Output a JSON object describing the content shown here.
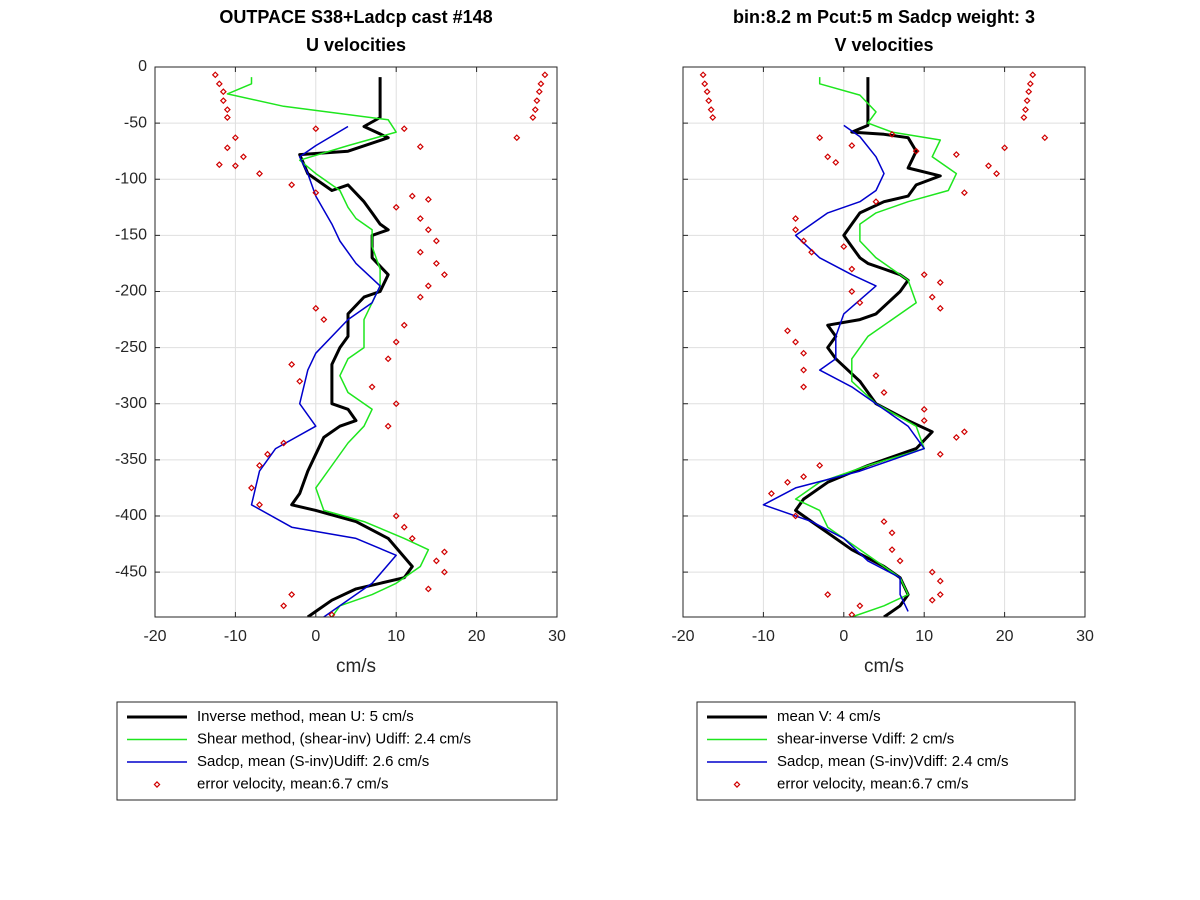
{
  "chart_data": [
    {
      "type": "line",
      "title": "OUTPACE S38+Ladcp cast #148",
      "subtitle": "U velocities",
      "x_label": "cm/s",
      "xlim": [
        -20,
        30
      ],
      "ylim": [
        -490,
        0
      ],
      "xticks": [
        -20,
        -10,
        0,
        10,
        20,
        30
      ],
      "yticks": [
        0,
        -50,
        -100,
        -150,
        -200,
        -250,
        -300,
        -350,
        -400,
        -450
      ],
      "grid": true,
      "legend": "below",
      "series": [
        {
          "name": "Inverse method, mean U:  5 cm/s",
          "color": "#000000",
          "linewidth": 3,
          "x": [
            8,
            8,
            6,
            9,
            4,
            -2,
            -1,
            2,
            4,
            6,
            7,
            8,
            9,
            7,
            7,
            9,
            8,
            6,
            4,
            4,
            3,
            2,
            2,
            2,
            4,
            5,
            3,
            1,
            0,
            -1,
            -2,
            -3,
            0,
            5,
            9,
            12,
            11,
            5,
            2,
            0,
            -1
          ],
          "y": [
            -9,
            -45,
            -53,
            -63,
            -75,
            -78,
            -95,
            -110,
            -105,
            -120,
            -130,
            -140,
            -145,
            -150,
            -170,
            -185,
            -200,
            -205,
            -220,
            -240,
            -250,
            -265,
            -280,
            -300,
            -305,
            -315,
            -320,
            -330,
            -345,
            -360,
            -380,
            -390,
            -395,
            -405,
            -420,
            -445,
            -455,
            -465,
            -475,
            -485,
            -490
          ]
        },
        {
          "name": "Shear method, (shear-inv)  Udiff:  2.4 cm/s",
          "color": "#1ee61e",
          "linewidth": 1.5,
          "x": [
            -8,
            -8,
            -11,
            -4,
            9,
            10,
            4,
            -2,
            0,
            3,
            4,
            5,
            7,
            7,
            8,
            8,
            7,
            6,
            6,
            4,
            3,
            4,
            7,
            6,
            4,
            2,
            0,
            1,
            6,
            11,
            14,
            13,
            10,
            7,
            3,
            2
          ],
          "y": [
            -9,
            -15,
            -24,
            -35,
            -47,
            -58,
            -70,
            -83,
            -95,
            -110,
            -125,
            -135,
            -145,
            -160,
            -180,
            -195,
            -210,
            -225,
            -250,
            -260,
            -275,
            -290,
            -305,
            -320,
            -335,
            -355,
            -375,
            -395,
            -405,
            -420,
            -430,
            -445,
            -460,
            -470,
            -480,
            -490
          ]
        },
        {
          "name": "Sadcp, mean (S-inv)Udiff: 2.6 cm/s",
          "color": "#0000cc",
          "linewidth": 1.5,
          "x": [
            4,
            0,
            -2,
            -1,
            0,
            2,
            3,
            5,
            8,
            7,
            4,
            0,
            -1,
            -2,
            0,
            -5,
            -7,
            -8,
            -3,
            5,
            10,
            7,
            1
          ],
          "y": [
            -53,
            -70,
            -80,
            -95,
            -115,
            -140,
            -155,
            -175,
            -195,
            -210,
            -225,
            -255,
            -270,
            -300,
            -320,
            -340,
            -360,
            -390,
            -410,
            -420,
            -435,
            -460,
            -490
          ]
        },
        {
          "name": "error velocity, mean:6.7 cm/s",
          "color": "#d00000",
          "marker": "diamond",
          "x": [
            -12.5,
            -12,
            -11.5,
            -11.5,
            -11,
            -11,
            28.5,
            28,
            27.8,
            27.5,
            27.3,
            27,
            25,
            -10,
            -11,
            -9,
            -10,
            -12,
            -7,
            0,
            11,
            13,
            -3,
            0,
            12,
            14,
            10,
            13,
            14,
            15,
            13,
            15,
            16,
            14,
            13,
            0,
            1,
            11,
            10,
            9,
            -3,
            -2,
            7,
            10,
            9,
            -4,
            -6,
            -7,
            -8,
            -7,
            10,
            11,
            12,
            16,
            15,
            16,
            14,
            -3,
            -4,
            2
          ],
          "y": [
            -7,
            -15,
            -22,
            -30,
            -38,
            -45,
            -7,
            -15,
            -22,
            -30,
            -38,
            -45,
            -63,
            -63,
            -72,
            -80,
            -88,
            -87,
            -95,
            -55,
            -55,
            -71,
            -105,
            -112,
            -115,
            -118,
            -125,
            -135,
            -145,
            -155,
            -165,
            -175,
            -185,
            -195,
            -205,
            -215,
            -225,
            -230,
            -245,
            -260,
            -265,
            -280,
            -285,
            -300,
            -320,
            -335,
            -345,
            -355,
            -375,
            -390,
            -400,
            -410,
            -420,
            -432,
            -440,
            -450,
            -465,
            -470,
            -480,
            -488
          ]
        }
      ]
    },
    {
      "type": "line",
      "title": "bin:8.2 m  Pcut:5 m  Sadcp weight: 3",
      "subtitle": "V velocities",
      "x_label": "cm/s",
      "xlim": [
        -20,
        30
      ],
      "ylim": [
        -490,
        0
      ],
      "xticks": [
        -20,
        -10,
        0,
        10,
        20,
        30
      ],
      "yticks": [
        0,
        -50,
        -100,
        -150,
        -200,
        -250,
        -300,
        -350,
        -400,
        -450
      ],
      "grid": true,
      "legend": "below",
      "series": [
        {
          "name": "mean V:  4 cm/s",
          "color": "#000000",
          "linewidth": 3,
          "x": [
            3,
            3,
            3,
            1,
            5,
            8,
            9,
            8,
            12,
            9,
            8,
            5,
            2,
            1,
            0,
            1,
            2,
            3,
            5,
            7,
            8,
            7,
            4,
            2,
            -2,
            -1,
            -2,
            -1,
            2,
            4,
            8,
            11,
            9,
            3,
            -2,
            -5,
            -6,
            -4,
            -2,
            1,
            5,
            7,
            8,
            7,
            5
          ],
          "y": [
            -9,
            -45,
            -52,
            -58,
            -60,
            -63,
            -75,
            -90,
            -97,
            -105,
            -115,
            -120,
            -130,
            -140,
            -150,
            -160,
            -170,
            -175,
            -180,
            -185,
            -190,
            -200,
            -220,
            -225,
            -230,
            -240,
            -250,
            -260,
            -280,
            -300,
            -315,
            -325,
            -340,
            -355,
            -370,
            -385,
            -395,
            -405,
            -415,
            -430,
            -445,
            -455,
            -470,
            -480,
            -490
          ]
        },
        {
          "name": "shear-inverse Vdiff:  2 cm/s",
          "color": "#1ee61e",
          "linewidth": 1.5,
          "x": [
            -3,
            -3,
            2,
            4,
            3,
            6,
            12,
            11,
            14,
            13,
            8,
            4,
            2,
            2,
            4,
            6,
            8,
            9,
            6,
            3,
            1,
            1,
            4,
            9,
            10,
            3,
            -3,
            -6,
            -3,
            -2,
            1,
            4,
            7,
            8,
            5,
            1
          ],
          "y": [
            -9,
            -15,
            -25,
            -40,
            -50,
            -58,
            -65,
            -80,
            -95,
            -110,
            -120,
            -130,
            -140,
            -155,
            -170,
            -180,
            -190,
            -210,
            -225,
            -240,
            -260,
            -280,
            -300,
            -320,
            -340,
            -355,
            -370,
            -385,
            -395,
            -410,
            -425,
            -440,
            -455,
            -470,
            -480,
            -490
          ]
        },
        {
          "name": "Sadcp, mean (S-inv)Vdiff: 2.4 cm/s",
          "color": "#0000cc",
          "linewidth": 1.5,
          "x": [
            0,
            2,
            4,
            5,
            4,
            2,
            -2,
            -6,
            -3,
            1,
            4,
            0,
            -1,
            -1,
            -3,
            1,
            4,
            8,
            10,
            2,
            -6,
            -10,
            -4,
            0,
            3,
            7,
            7,
            8
          ],
          "y": [
            -52,
            -62,
            -80,
            -95,
            -110,
            -120,
            -130,
            -150,
            -170,
            -185,
            -195,
            -220,
            -240,
            -260,
            -270,
            -285,
            -300,
            -320,
            -340,
            -360,
            -375,
            -390,
            -405,
            -420,
            -440,
            -455,
            -470,
            -485
          ]
        },
        {
          "name": "error velocity, mean:6.7 cm/s",
          "color": "#d00000",
          "marker": "diamond",
          "x": [
            -17.5,
            -17.3,
            -17,
            -16.8,
            -16.5,
            -16.3,
            23.5,
            23.2,
            23,
            22.8,
            22.6,
            22.4,
            25,
            -3,
            -2,
            1,
            6,
            9,
            14,
            18,
            20,
            19,
            15,
            -1,
            4,
            -6,
            -6,
            -5,
            0,
            -4,
            1,
            1,
            10,
            12,
            11,
            12,
            2,
            -7,
            -6,
            -5,
            -5,
            -5,
            4,
            5,
            10,
            10,
            14,
            15,
            12,
            -3,
            -5,
            -7,
            -9,
            -6,
            5,
            6,
            6,
            7,
            11,
            12,
            12,
            11,
            -2,
            2,
            1
          ],
          "y": [
            -7,
            -15,
            -22,
            -30,
            -38,
            -45,
            -7,
            -15,
            -22,
            -30,
            -38,
            -45,
            -63,
            -63,
            -80,
            -70,
            -60,
            -75,
            -78,
            -88,
            -72,
            -95,
            -112,
            -85,
            -120,
            -135,
            -145,
            -155,
            -160,
            -165,
            -180,
            -200,
            -185,
            -192,
            -205,
            -215,
            -210,
            -235,
            -245,
            -255,
            -270,
            -285,
            -275,
            -290,
            -305,
            -315,
            -330,
            -325,
            -345,
            -355,
            -365,
            -370,
            -380,
            -400,
            -405,
            -415,
            -430,
            -440,
            -450,
            -458,
            -470,
            -475,
            -470,
            -480,
            -488
          ]
        }
      ]
    }
  ]
}
